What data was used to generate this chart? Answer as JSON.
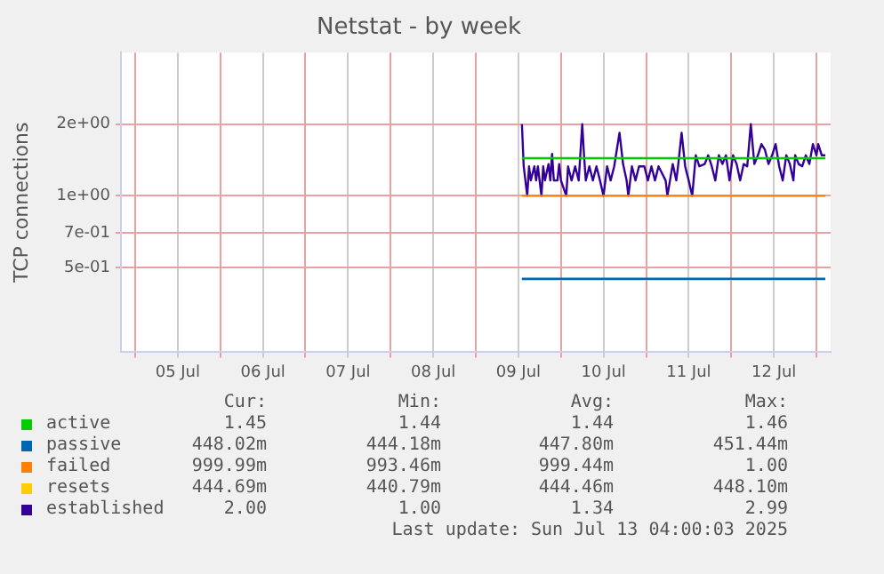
{
  "chart_data": {
    "type": "line",
    "title": "Netstat - by week",
    "ylabel": "TCP connections",
    "log": "y",
    "grid": true,
    "legend": "bottom",
    "marker": "none",
    "line_style": "solid",
    "xlim": [
      "2025-07-04T20:00",
      "2025-07-13T04:00"
    ],
    "xticks": [
      {
        "value": "2025-07-05T00:00",
        "label": null
      },
      {
        "value": "2025-07-05T12:00",
        "label": "05 Jul"
      },
      {
        "value": "2025-07-06T00:00",
        "label": null
      },
      {
        "value": "2025-07-06T12:00",
        "label": "06 Jul"
      },
      {
        "value": "2025-07-07T00:00",
        "label": null
      },
      {
        "value": "2025-07-07T12:00",
        "label": "07 Jul"
      },
      {
        "value": "2025-07-08T00:00",
        "label": null
      },
      {
        "value": "2025-07-08T12:00",
        "label": "08 Jul"
      },
      {
        "value": "2025-07-09T00:00",
        "label": null
      },
      {
        "value": "2025-07-09T12:00",
        "label": "09 Jul"
      },
      {
        "value": "2025-07-10T00:00",
        "label": null
      },
      {
        "value": "2025-07-10T12:00",
        "label": "10 Jul"
      },
      {
        "value": "2025-07-11T00:00",
        "label": null
      },
      {
        "value": "2025-07-11T12:00",
        "label": "11 Jul"
      },
      {
        "value": "2025-07-12T00:00",
        "label": null
      },
      {
        "value": "2025-07-12T12:00",
        "label": "12 Jul"
      },
      {
        "value": "2025-07-13T00:00",
        "label": null
      }
    ],
    "ylim": [
      0.22,
      4
    ],
    "yticks": [
      {
        "value": 0.5,
        "label": "5e-01"
      },
      {
        "value": 0.7,
        "label": "7e-01"
      },
      {
        "value": 1,
        "label": "1e+00"
      },
      {
        "value": 2,
        "label": "2e+00"
      }
    ],
    "series": [
      {
        "name": "active",
        "color": "#00cc00",
        "x": [
          "2025-07-09T13:00",
          "2025-07-13T02:30"
        ],
        "values": [
          1.44,
          1.44
        ]
      },
      {
        "name": "passive",
        "color": "#0066b3",
        "x": [
          "2025-07-09T13:00",
          "2025-07-13T02:30"
        ],
        "values": [
          0.448,
          0.448
        ]
      },
      {
        "name": "failed",
        "color": "#ff8000",
        "x": [
          "2025-07-09T13:00",
          "2025-07-13T02:30"
        ],
        "values": [
          1.0,
          1.0
        ]
      },
      {
        "name": "resets",
        "color": "#ffcc00",
        "x": [
          "2025-07-09T13:00",
          "2025-07-13T02:30"
        ],
        "values": [
          0.445,
          0.445
        ]
      },
      {
        "name": "established",
        "color": "#330099",
        "x": [
          "2025-07-09T13:00",
          "2025-07-09T13:30",
          "2025-07-09T14:30",
          "2025-07-09T15:00",
          "2025-07-09T15:30",
          "2025-07-09T16:30",
          "2025-07-09T17:00",
          "2025-07-09T17:30",
          "2025-07-09T18:30",
          "2025-07-09T19:00",
          "2025-07-09T19:30",
          "2025-07-09T20:30",
          "2025-07-09T21:00",
          "2025-07-09T21:30",
          "2025-07-09T22:00",
          "2025-07-09T23:00",
          "2025-07-09T23:30",
          "2025-07-10T00:00",
          "2025-07-10T01:30",
          "2025-07-10T02:00",
          "2025-07-10T03:00",
          "2025-07-10T04:00",
          "2025-07-10T05:00",
          "2025-07-10T06:00",
          "2025-07-10T06:30",
          "2025-07-10T07:00",
          "2025-07-10T08:00",
          "2025-07-10T09:00",
          "2025-07-10T10:00",
          "2025-07-10T11:00",
          "2025-07-10T12:00",
          "2025-07-10T13:00",
          "2025-07-10T14:00",
          "2025-07-10T15:00",
          "2025-07-10T16:30",
          "2025-07-10T17:30",
          "2025-07-10T18:30",
          "2025-07-10T19:00",
          "2025-07-10T20:00",
          "2025-07-10T21:00",
          "2025-07-10T22:00",
          "2025-07-10T23:30",
          "2025-07-11T00:30",
          "2025-07-11T01:30",
          "2025-07-11T02:30",
          "2025-07-11T03:30",
          "2025-07-11T05:30",
          "2025-07-11T06:00",
          "2025-07-11T07:30",
          "2025-07-11T08:30",
          "2025-07-11T09:00",
          "2025-07-11T10:00",
          "2025-07-11T11:00",
          "2025-07-11T12:00",
          "2025-07-11T13:00",
          "2025-07-11T14:00",
          "2025-07-11T15:00",
          "2025-07-11T16:30",
          "2025-07-11T17:30",
          "2025-07-11T18:30",
          "2025-07-11T19:30",
          "2025-07-11T20:30",
          "2025-07-11T21:30",
          "2025-07-11T22:30",
          "2025-07-11T23:30",
          "2025-07-12T00:30",
          "2025-07-12T01:30",
          "2025-07-12T02:30",
          "2025-07-12T03:30",
          "2025-07-12T04:30",
          "2025-07-12T05:30",
          "2025-07-12T06:30",
          "2025-07-12T07:30",
          "2025-07-12T08:30",
          "2025-07-12T09:30",
          "2025-07-12T10:30",
          "2025-07-12T11:30",
          "2025-07-12T12:30",
          "2025-07-12T13:30",
          "2025-07-12T14:30",
          "2025-07-12T15:30",
          "2025-07-12T16:30",
          "2025-07-12T17:30",
          "2025-07-12T18:00",
          "2025-07-12T19:00",
          "2025-07-12T20:00",
          "2025-07-12T21:00",
          "2025-07-12T22:00",
          "2025-07-12T23:00",
          "2025-07-13T00:00",
          "2025-07-13T00:30",
          "2025-07-13T01:30",
          "2025-07-13T02:30"
        ],
        "values": [
          2.0,
          1.33,
          1.0,
          1.33,
          1.16,
          1.33,
          1.16,
          1.33,
          1.0,
          1.33,
          1.16,
          1.36,
          1.16,
          1.5,
          1.16,
          1.16,
          1.36,
          1.16,
          1.0,
          1.33,
          1.16,
          1.33,
          1.16,
          2.0,
          1.48,
          1.16,
          1.33,
          1.16,
          1.33,
          1.16,
          1.0,
          1.33,
          1.16,
          1.33,
          1.84,
          1.36,
          1.16,
          1.0,
          1.33,
          1.16,
          1.33,
          1.33,
          1.16,
          1.33,
          1.16,
          1.33,
          1.16,
          1.0,
          1.36,
          1.16,
          1.33,
          1.84,
          1.33,
          1.16,
          1.0,
          1.48,
          1.33,
          1.36,
          1.48,
          1.33,
          1.16,
          1.48,
          1.36,
          1.48,
          1.16,
          1.48,
          1.36,
          1.16,
          1.36,
          1.33,
          2.0,
          1.36,
          1.48,
          1.65,
          1.56,
          1.36,
          1.48,
          1.65,
          1.33,
          1.16,
          1.48,
          1.36,
          1.16,
          1.48,
          1.36,
          1.33,
          1.48,
          1.36,
          1.65,
          1.48,
          1.65,
          1.48,
          1.48
        ]
      }
    ],
    "annotations": [
      "Cur:",
      "Min:",
      "Avg:",
      "Max:",
      "1.45",
      "1.44",
      "1.44",
      "1.46",
      "448.02m",
      "444.18m",
      "447.80m",
      "451.44m",
      "999.99m",
      "993.46m",
      "999.44m",
      "1.00",
      "444.69m",
      "440.79m",
      "444.46m",
      "448.10m",
      "2.00",
      "1.00",
      "1.34",
      "2.99",
      "Last update: Sun Jul 13 04:00:03 2025"
    ]
  }
}
